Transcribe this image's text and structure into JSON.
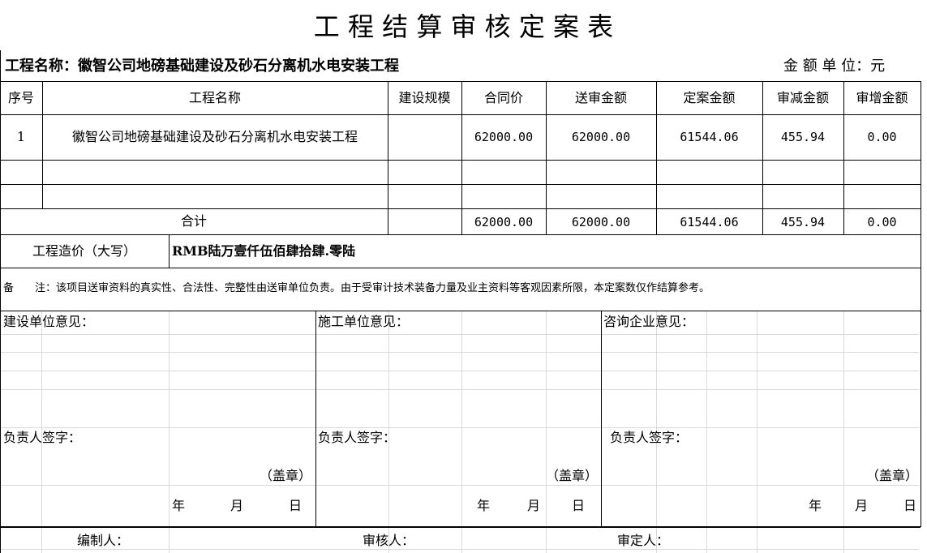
{
  "title": "工 程 结 算 审 核 定 案 表",
  "project_label": "工程名称：徽智公司地磅基础建设及砂石分离机水电安装工程",
  "unit_label": "金 额 单 位：元",
  "table": {
    "headers": [
      "序号",
      "工程名称",
      "建设规模",
      "合同价",
      "送审金额",
      "定案金额",
      "审减金额",
      "审增金额"
    ],
    "rows": [
      [
        "1",
        "徽智公司地磅基础建设及砂石分离机水电安装工程",
        "",
        "62000.00",
        "62000.00",
        "61544.06",
        "455.94",
        "0.00"
      ]
    ],
    "total": {
      "label": "合计",
      "values": [
        "62000.00",
        "62000.00",
        "61544.06",
        "455.94",
        "0.00"
      ]
    }
  },
  "capital_amount": {
    "label": "工程造价（大写）",
    "value": "RMB陆万壹仟伍佰肆拾肆.零陆"
  },
  "note": "备　　注：该项目送审资料的真实性、合法性、完整性由送审单位负责。由于受审计技术装备力量及业主资料等客观因素所限，本定案数仅作结算参考。",
  "opinions": [
    {
      "title": "建设单位意见：",
      "sign": "负责人签字：",
      "seal": "（盖章）",
      "year": "年",
      "month": "月",
      "day": "日"
    },
    {
      "title": "施工单位意见：",
      "sign": "负责人签字：",
      "seal": "（盖章）",
      "year": "年",
      "month": "月",
      "day": "日"
    },
    {
      "title": "咨询企业意见：",
      "sign": "负责人签字：",
      "seal": "（盖章）",
      "year": "年",
      "month": "月",
      "day": "日"
    }
  ],
  "footer": {
    "compiler": "编制人：",
    "reviewer": "审核人：",
    "approver": "审定人："
  }
}
